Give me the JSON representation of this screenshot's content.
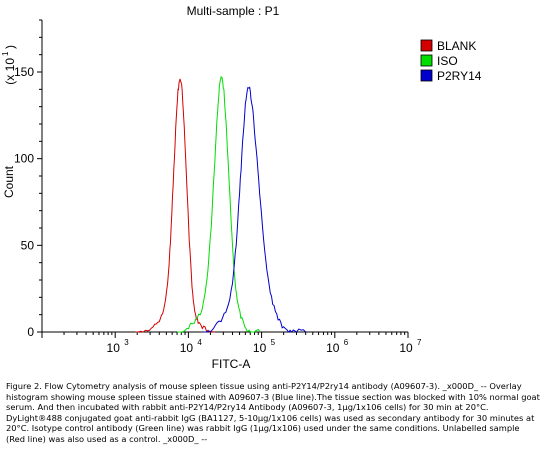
{
  "chart_data": {
    "type": "line",
    "title": "Multi-sample : P1",
    "xlabel": "FITC-A",
    "ylabel": "Count",
    "y_multiplier": "(x 10",
    "y_multiplier_exp": "1",
    "x_scale": "log",
    "xlim": [
      100,
      10000000
    ],
    "ylim": [
      0,
      180
    ],
    "x_ticks": [
      {
        "value": 1000,
        "base": "10",
        "exp": "3"
      },
      {
        "value": 10000,
        "base": "10",
        "exp": "4"
      },
      {
        "value": 100000,
        "base": "10",
        "exp": "5"
      },
      {
        "value": 1000000,
        "base": "10",
        "exp": "6"
      },
      {
        "value": 10000000,
        "base": "10",
        "exp": "7"
      }
    ],
    "y_ticks": [
      {
        "value": 0,
        "label": "0"
      },
      {
        "value": 50,
        "label": "50"
      },
      {
        "value": 100,
        "label": "100"
      },
      {
        "value": 150,
        "label": "150"
      }
    ],
    "legend_position": "top-right",
    "grid": false,
    "series": [
      {
        "name": "BLANK",
        "color": "#d40000",
        "x": [
          1900,
          2600,
          3300,
          4000,
          4600,
          5200,
          5700,
          6200,
          6700,
          7200,
          7700,
          8200,
          8800,
          9500,
          10300,
          11200,
          12200,
          13600,
          15500,
          18500,
          23000
        ],
        "y": [
          0,
          1,
          3,
          6,
          13,
          28,
          52,
          85,
          118,
          140,
          146,
          140,
          118,
          85,
          52,
          26,
          12,
          5,
          2,
          1,
          0
        ]
      },
      {
        "name": "ISO",
        "color": "#00dd00",
        "x": [
          7000,
          9500,
          12000,
          14500,
          16500,
          18500,
          20500,
          22500,
          24500,
          26500,
          28500,
          30500,
          32800,
          35500,
          38500,
          42000,
          46500,
          52000,
          59000,
          68000,
          80000,
          95000
        ],
        "y": [
          0,
          2,
          5,
          10,
          20,
          36,
          60,
          92,
          122,
          142,
          147,
          140,
          120,
          92,
          62,
          36,
          18,
          8,
          3,
          1,
          0,
          0
        ]
      },
      {
        "name": "P2RY14",
        "color": "#0000cc",
        "x": [
          16000,
          22000,
          28000,
          34000,
          40000,
          45000,
          50000,
          55000,
          60000,
          65000,
          70000,
          76000,
          84000,
          94000,
          106000,
          122000,
          142000,
          168000,
          200000,
          245000,
          300000,
          400000
        ],
        "y": [
          0,
          2,
          6,
          14,
          28,
          50,
          80,
          110,
          132,
          141,
          139,
          128,
          106,
          80,
          54,
          32,
          16,
          7,
          3,
          1,
          0,
          0
        ]
      }
    ]
  },
  "caption": [
    "Figure 2. Flow Cytometry analysis of mouse spleen tissue using anti-P2Y14/P2ry14 antibody (A09607-3). _x000D_ -- Overlay",
    "histogram showing mouse spleen tissue stained with A09607-3 (Blue line).The tissue section was blocked with 10% normal goat",
    "serum. And then incubated with rabbit anti-P2Y14/P2ry14 Antibody (A09607-3, 1μg/1x106 cells) for 30 min at 20°C.",
    "DyLight®488 conjugated goat anti-rabbit IgG (BA1127, 5-10μg/1x106 cells) was used as secondary antibody for 30 minutes at",
    "20°C. Isotype control antibody (Green line) was rabbit IgG (1μg/1x106) used under the same conditions. Unlabelled sample",
    "(Red line) was also used as a control. _x000D_ --"
  ]
}
